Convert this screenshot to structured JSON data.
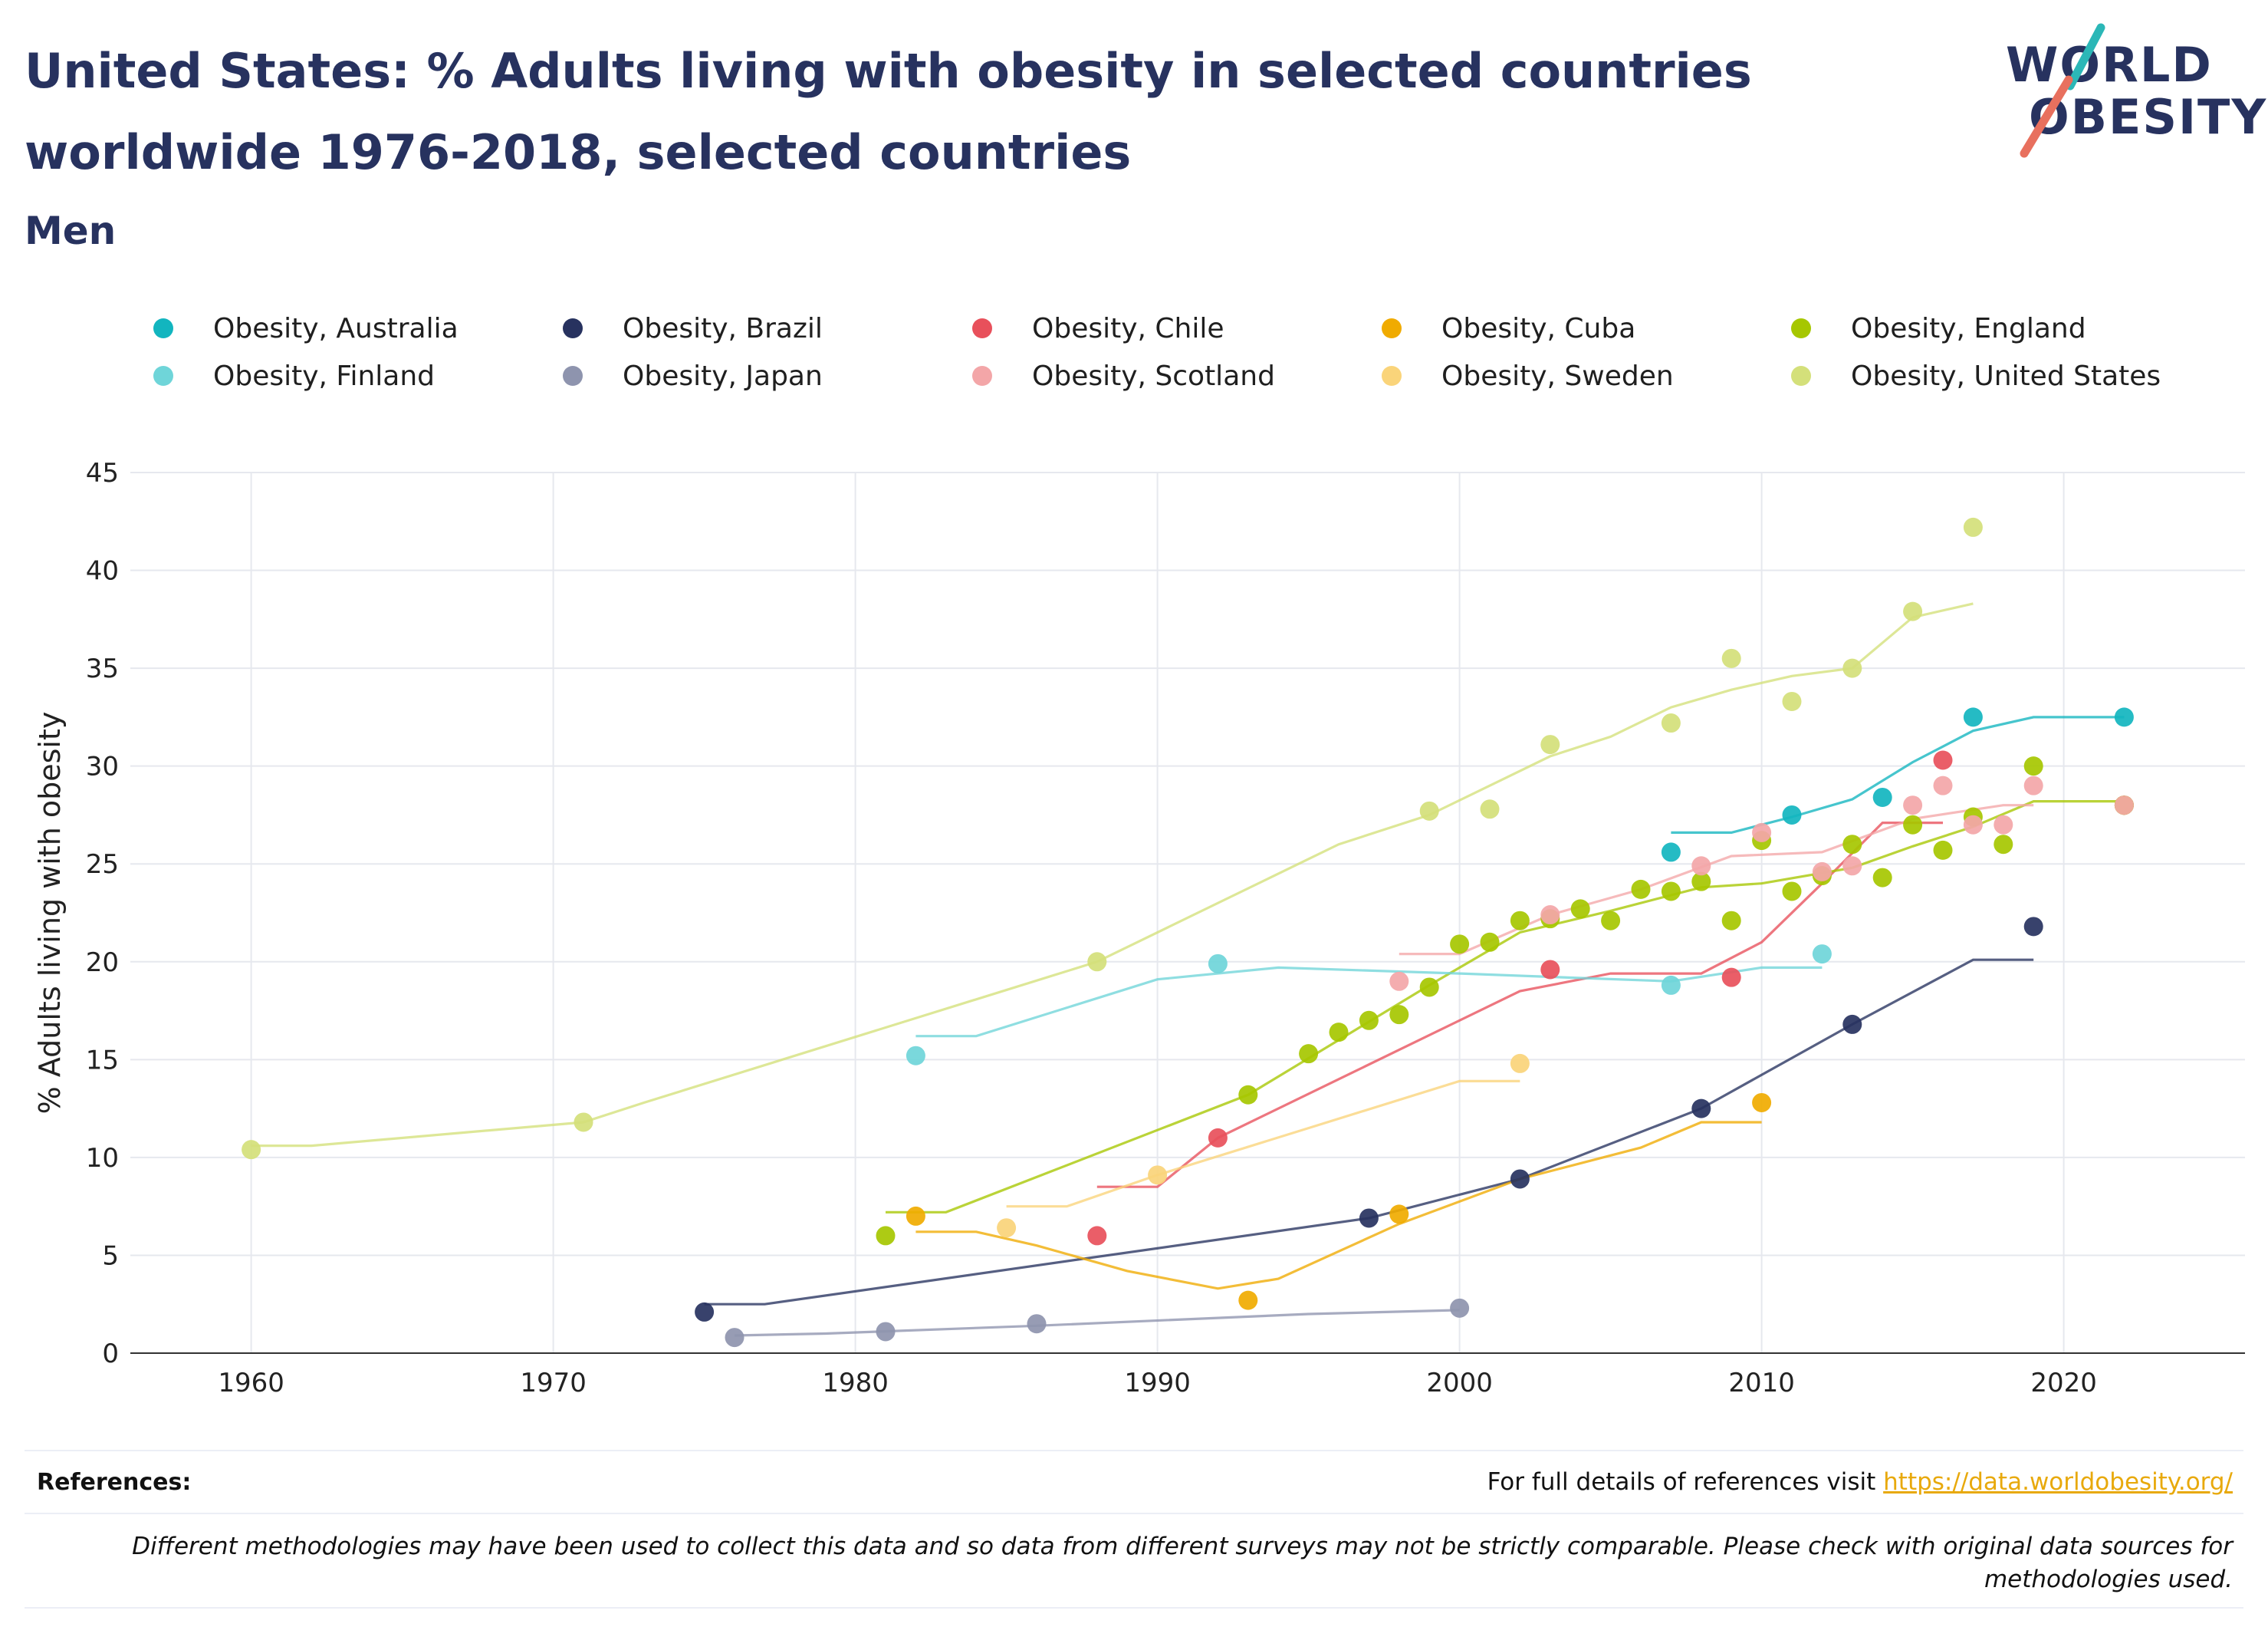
{
  "header": {
    "title_line1": "United States: % Adults living with obesity in selected countries",
    "title_line2": "worldwide 1976-2018, selected countries",
    "subtitle": "Men"
  },
  "logo": {
    "line1": "WORLD",
    "line2": "OBESITY"
  },
  "footer": {
    "references_label": "References:",
    "references_text": "For full details of references visit",
    "references_link": "https://data.worldobesity.org/",
    "disclaimer_line1": "Different methodologies may have been used to collect this data and so data from different surveys may not be strictly comparable. Please check with original data sources for",
    "disclaimer_line2": "methodologies used."
  },
  "chart_data": {
    "type": "scatter",
    "title": "United States: % Adults living with obesity in selected countries worldwide 1976-2018, selected countries",
    "subtitle": "Men",
    "xlabel": "",
    "ylabel": "% Adults living with obesity",
    "xlim": [
      1956,
      2026
    ],
    "ylim": [
      0,
      45
    ],
    "x_ticks": [
      1960,
      1970,
      1980,
      1990,
      2000,
      2010,
      2020
    ],
    "y_ticks": [
      0,
      5,
      10,
      15,
      20,
      25,
      30,
      35,
      40,
      45
    ],
    "grid": true,
    "legend_position": "top",
    "series": [
      {
        "name": "Obesity, Australia",
        "color": "#12b5bf",
        "points": [
          [
            2007,
            25.6
          ],
          [
            2011,
            27.5
          ],
          [
            2014,
            28.4
          ],
          [
            2017,
            32.5
          ],
          [
            2022,
            32.5
          ]
        ],
        "trend": [
          [
            2007,
            26.6
          ],
          [
            2009,
            26.6
          ],
          [
            2011,
            27.4
          ],
          [
            2013,
            28.3
          ],
          [
            2015,
            30.2
          ],
          [
            2017,
            31.8
          ],
          [
            2019,
            32.5
          ],
          [
            2022,
            32.5
          ]
        ]
      },
      {
        "name": "Obesity, Brazil",
        "color": "#27325f",
        "points": [
          [
            1975,
            2.1
          ],
          [
            1997,
            6.9
          ],
          [
            2002,
            8.9
          ],
          [
            2008,
            12.5
          ],
          [
            2013,
            16.8
          ],
          [
            2019,
            21.8
          ],
          [
            2022,
            28.0
          ]
        ],
        "trend": [
          [
            1975,
            2.5
          ],
          [
            1977,
            2.5
          ],
          [
            1997,
            6.9
          ],
          [
            2002,
            8.9
          ],
          [
            2008,
            12.5
          ],
          [
            2013,
            16.8
          ],
          [
            2017,
            20.1
          ],
          [
            2019,
            20.1
          ]
        ]
      },
      {
        "name": "Obesity, Chile",
        "color": "#e8505b",
        "points": [
          [
            1988,
            6.0
          ],
          [
            1992,
            11.0
          ],
          [
            2003,
            19.6
          ],
          [
            2009,
            19.2
          ],
          [
            2016,
            30.3
          ],
          [
            2022,
            28.0
          ]
        ],
        "trend": [
          [
            1988,
            8.5
          ],
          [
            1990,
            8.5
          ],
          [
            1992,
            11.0
          ],
          [
            1998,
            15.5
          ],
          [
            2002,
            18.5
          ],
          [
            2005,
            19.4
          ],
          [
            2008,
            19.4
          ],
          [
            2010,
            21.0
          ],
          [
            2012,
            24.0
          ],
          [
            2014,
            27.1
          ],
          [
            2016,
            27.1
          ]
        ]
      },
      {
        "name": "Obesity, Cuba",
        "color": "#f0ab00",
        "points": [
          [
            1982,
            7.0
          ],
          [
            1993,
            2.7
          ],
          [
            1998,
            7.1
          ],
          [
            2010,
            12.8
          ],
          [
            2022,
            28.0
          ]
        ],
        "trend": [
          [
            1982,
            6.2
          ],
          [
            1984,
            6.2
          ],
          [
            1986,
            5.5
          ],
          [
            1989,
            4.2
          ],
          [
            1992,
            3.3
          ],
          [
            1994,
            3.8
          ],
          [
            1996,
            5.2
          ],
          [
            1998,
            6.6
          ],
          [
            2002,
            8.9
          ],
          [
            2006,
            10.5
          ],
          [
            2008,
            11.8
          ],
          [
            2010,
            11.8
          ]
        ]
      },
      {
        "name": "Obesity, England",
        "color": "#a6c700",
        "points": [
          [
            1981,
            6.0
          ],
          [
            1993,
            13.2
          ],
          [
            1995,
            15.3
          ],
          [
            1996,
            16.4
          ],
          [
            1997,
            17.0
          ],
          [
            1998,
            17.3
          ],
          [
            1999,
            18.7
          ],
          [
            2000,
            20.9
          ],
          [
            2001,
            21.0
          ],
          [
            2002,
            22.1
          ],
          [
            2003,
            22.2
          ],
          [
            2004,
            22.7
          ],
          [
            2005,
            22.1
          ],
          [
            2006,
            23.7
          ],
          [
            2007,
            23.6
          ],
          [
            2008,
            24.1
          ],
          [
            2009,
            22.1
          ],
          [
            2010,
            26.2
          ],
          [
            2011,
            23.6
          ],
          [
            2012,
            24.4
          ],
          [
            2013,
            26.0
          ],
          [
            2014,
            24.3
          ],
          [
            2015,
            27.0
          ],
          [
            2016,
            25.7
          ],
          [
            2017,
            27.4
          ],
          [
            2018,
            26.0
          ],
          [
            2019,
            30.0
          ],
          [
            2022,
            28.0
          ]
        ],
        "trend": [
          [
            1981,
            7.2
          ],
          [
            1983,
            7.2
          ],
          [
            1993,
            13.2
          ],
          [
            1999,
            18.8
          ],
          [
            2002,
            21.5
          ],
          [
            2005,
            22.6
          ],
          [
            2008,
            23.8
          ],
          [
            2010,
            24.0
          ],
          [
            2013,
            24.8
          ],
          [
            2015,
            25.9
          ],
          [
            2017,
            26.9
          ],
          [
            2019,
            28.2
          ],
          [
            2022,
            28.2
          ]
        ]
      },
      {
        "name": "Obesity, Finland",
        "color": "#6fd5d9",
        "points": [
          [
            1982,
            15.2
          ],
          [
            1992,
            19.9
          ],
          [
            2007,
            18.8
          ],
          [
            2012,
            20.4
          ]
        ],
        "trend": [
          [
            1982,
            16.2
          ],
          [
            1984,
            16.2
          ],
          [
            1990,
            19.1
          ],
          [
            1994,
            19.7
          ],
          [
            2000,
            19.4
          ],
          [
            2007,
            19.0
          ],
          [
            2010,
            19.7
          ],
          [
            2012,
            19.7
          ]
        ]
      },
      {
        "name": "Obesity, Japan",
        "color": "#8e94ae",
        "points": [
          [
            1976,
            0.8
          ],
          [
            1981,
            1.1
          ],
          [
            1986,
            1.5
          ],
          [
            2000,
            2.3
          ]
        ],
        "trend": [
          [
            1976,
            0.9
          ],
          [
            1979,
            1.0
          ],
          [
            1986,
            1.4
          ],
          [
            1995,
            2.0
          ],
          [
            2000,
            2.2
          ]
        ]
      },
      {
        "name": "Obesity, Scotland",
        "color": "#f3a6a8",
        "points": [
          [
            1998,
            19.0
          ],
          [
            2003,
            22.4
          ],
          [
            2008,
            24.9
          ],
          [
            2010,
            26.6
          ],
          [
            2012,
            24.6
          ],
          [
            2013,
            24.9
          ],
          [
            2015,
            28.0
          ],
          [
            2016,
            29.0
          ],
          [
            2017,
            27.0
          ],
          [
            2018,
            27.0
          ],
          [
            2019,
            29.0
          ],
          [
            2022,
            28.0
          ]
        ],
        "trend": [
          [
            1998,
            20.4
          ],
          [
            2000,
            20.4
          ],
          [
            2003,
            22.4
          ],
          [
            2006,
            23.7
          ],
          [
            2009,
            25.4
          ],
          [
            2012,
            25.6
          ],
          [
            2015,
            27.3
          ],
          [
            2018,
            28.0
          ],
          [
            2019,
            28.0
          ]
        ]
      },
      {
        "name": "Obesity, Sweden",
        "color": "#fad47a",
        "points": [
          [
            1985,
            6.4
          ],
          [
            1990,
            9.1
          ],
          [
            2002,
            14.8
          ]
        ],
        "trend": [
          [
            1985,
            7.5
          ],
          [
            1987,
            7.5
          ],
          [
            1990,
            9.1
          ],
          [
            1995,
            11.5
          ],
          [
            2000,
            13.9
          ],
          [
            2002,
            13.9
          ]
        ]
      },
      {
        "name": "Obesity, United States",
        "color": "#d4e07a",
        "points": [
          [
            1960,
            10.4
          ],
          [
            1971,
            11.8
          ],
          [
            1988,
            20.0
          ],
          [
            1999,
            27.7
          ],
          [
            2001,
            27.8
          ],
          [
            2003,
            31.1
          ],
          [
            2007,
            32.2
          ],
          [
            2009,
            35.5
          ],
          [
            2011,
            33.3
          ],
          [
            2013,
            35.0
          ],
          [
            2015,
            37.9
          ],
          [
            2017,
            42.2
          ]
        ],
        "trend": [
          [
            1960,
            10.6
          ],
          [
            1962,
            10.6
          ],
          [
            1971,
            11.8
          ],
          [
            1973,
            12.8
          ],
          [
            1988,
            20.0
          ],
          [
            1996,
            26.0
          ],
          [
            1999,
            27.5
          ],
          [
            2001,
            29.0
          ],
          [
            2003,
            30.5
          ],
          [
            2005,
            31.5
          ],
          [
            2007,
            33.0
          ],
          [
            2009,
            33.9
          ],
          [
            2011,
            34.6
          ],
          [
            2013,
            35.0
          ],
          [
            2015,
            37.6
          ],
          [
            2017,
            38.3
          ]
        ]
      }
    ]
  }
}
